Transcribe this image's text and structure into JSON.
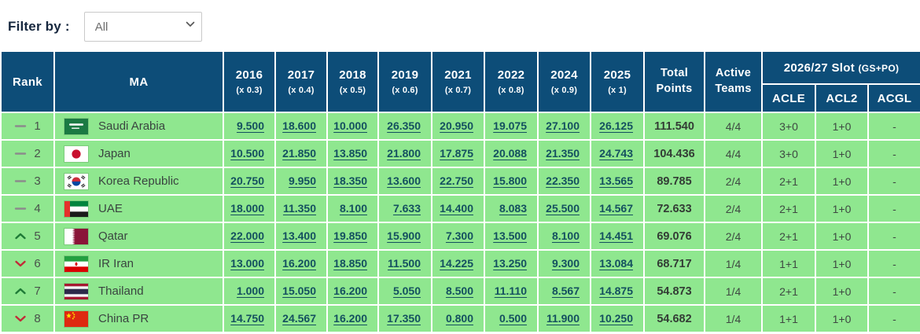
{
  "filter": {
    "label": "Filter by :",
    "selected": "All"
  },
  "colors": {
    "header_bg": "#0D4D78",
    "row_bg": "#8FE78F",
    "link": "#14505F",
    "name_text": "#3A4440",
    "total_text": "#333C35",
    "up": "#1E7A36",
    "down": "#C22B38",
    "dash": "#8C8C8C",
    "header_text": "#FFFFFF"
  },
  "table": {
    "headers": {
      "rank": "Rank",
      "ma": "MA",
      "total_line1": "Total",
      "total_line2": "Points",
      "active_line1": "Active",
      "active_line2": "Teams",
      "slot_group": "2026/27 Slot",
      "slot_suffix": "(GS+PO)",
      "slot_cols": [
        "ACLE",
        "ACL2",
        "ACGL"
      ],
      "years": [
        {
          "year": "2016",
          "mult": "(x 0.3)"
        },
        {
          "year": "2017",
          "mult": "(x 0.4)"
        },
        {
          "year": "2018",
          "mult": "(x 0.5)"
        },
        {
          "year": "2019",
          "mult": "(x 0.6)"
        },
        {
          "year": "2021",
          "mult": "(x 0.7)"
        },
        {
          "year": "2022",
          "mult": "(x 0.8)"
        },
        {
          "year": "2024",
          "mult": "(x 0.9)"
        },
        {
          "year": "2025",
          "mult": "(x 1)"
        }
      ]
    },
    "rows": [
      {
        "trend": "same",
        "rank": "1",
        "country": "Saudi Arabia",
        "flag": "sa",
        "scores": [
          "9.500",
          "18.600",
          "10.000",
          "26.350",
          "20.950",
          "19.075",
          "27.100",
          "26.125"
        ],
        "total": "111.540",
        "active": "4/4",
        "acle": "3+0",
        "acl2": "1+0",
        "acgl": "-"
      },
      {
        "trend": "same",
        "rank": "2",
        "country": "Japan",
        "flag": "jp",
        "scores": [
          "10.500",
          "21.850",
          "13.850",
          "21.800",
          "17.875",
          "20.088",
          "21.350",
          "24.743"
        ],
        "total": "104.436",
        "active": "4/4",
        "acle": "3+0",
        "acl2": "1+0",
        "acgl": "-"
      },
      {
        "trend": "same",
        "rank": "3",
        "country": "Korea Republic",
        "flag": "kr",
        "scores": [
          "20.750",
          "9.950",
          "18.350",
          "13.600",
          "22.750",
          "15.800",
          "22.350",
          "13.565"
        ],
        "total": "89.785",
        "active": "2/4",
        "acle": "2+1",
        "acl2": "1+0",
        "acgl": "-"
      },
      {
        "trend": "same",
        "rank": "4",
        "country": "UAE",
        "flag": "ae",
        "scores": [
          "18.000",
          "11.350",
          "8.100",
          "7.633",
          "14.400",
          "8.083",
          "25.500",
          "14.567"
        ],
        "total": "72.633",
        "active": "2/4",
        "acle": "2+1",
        "acl2": "1+0",
        "acgl": "-"
      },
      {
        "trend": "up",
        "rank": "5",
        "country": "Qatar",
        "flag": "qa",
        "scores": [
          "22.000",
          "13.400",
          "19.850",
          "15.900",
          "7.300",
          "13.500",
          "8.100",
          "14.451"
        ],
        "total": "69.076",
        "active": "2/4",
        "acle": "2+1",
        "acl2": "1+0",
        "acgl": "-"
      },
      {
        "trend": "down",
        "rank": "6",
        "country": "IR Iran",
        "flag": "ir",
        "scores": [
          "13.000",
          "16.200",
          "18.850",
          "11.500",
          "14.225",
          "13.250",
          "9.300",
          "13.084"
        ],
        "total": "68.717",
        "active": "1/4",
        "acle": "1+1",
        "acl2": "1+0",
        "acgl": "-"
      },
      {
        "trend": "up",
        "rank": "7",
        "country": "Thailand",
        "flag": "th",
        "scores": [
          "1.000",
          "15.050",
          "16.200",
          "5.050",
          "8.500",
          "11.110",
          "8.567",
          "14.875"
        ],
        "total": "54.873",
        "active": "1/4",
        "acle": "2+1",
        "acl2": "1+0",
        "acgl": "-"
      },
      {
        "trend": "down",
        "rank": "8",
        "country": "China PR",
        "flag": "cn",
        "scores": [
          "14.750",
          "24.567",
          "16.200",
          "17.350",
          "0.800",
          "0.500",
          "11.900",
          "10.250"
        ],
        "total": "54.682",
        "active": "1/4",
        "acle": "1+1",
        "acl2": "1+0",
        "acgl": "-"
      }
    ]
  }
}
